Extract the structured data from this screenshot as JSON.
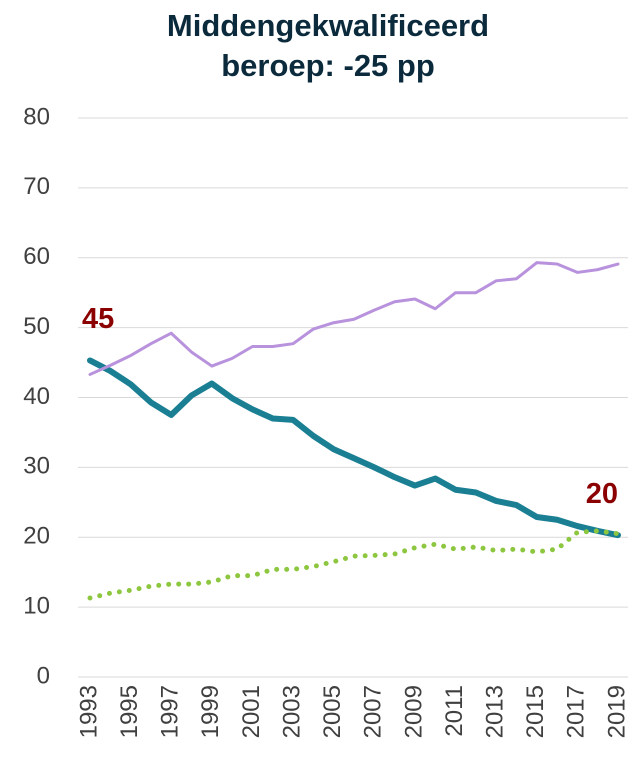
{
  "chart_data": {
    "type": "line",
    "title": "Middengekwalificeerd beroep: -25 pp",
    "x": [
      1993,
      1994,
      1995,
      1996,
      1997,
      1998,
      1999,
      2000,
      2001,
      2002,
      2003,
      2004,
      2005,
      2006,
      2007,
      2008,
      2009,
      2010,
      2011,
      2012,
      2013,
      2014,
      2015,
      2016,
      2017,
      2018,
      2019
    ],
    "series": [
      {
        "color": "#1a7f93",
        "width": 6,
        "dotted": false,
        "values": [
          45.3,
          43.8,
          41.9,
          39.3,
          37.5,
          40.3,
          42.0,
          39.9,
          38.3,
          37.0,
          36.8,
          34.5,
          32.6,
          31.3,
          30.0,
          28.6,
          27.4,
          28.4,
          26.8,
          26.4,
          25.2,
          24.6,
          22.9,
          22.5,
          21.6,
          20.9,
          20.3
        ],
        "value_labels": [
          "45",
          null,
          null,
          null,
          null,
          null,
          null,
          null,
          null,
          null,
          null,
          null,
          null,
          null,
          null,
          null,
          null,
          null,
          null,
          null,
          null,
          null,
          null,
          null,
          null,
          null,
          "20"
        ]
      },
      {
        "color": "#b892dc",
        "width": 3,
        "dotted": false,
        "values": [
          43.3,
          44.6,
          46.0,
          47.7,
          49.2,
          46.5,
          44.5,
          45.6,
          47.3,
          47.3,
          47.7,
          49.8,
          50.7,
          51.2,
          52.5,
          53.7,
          54.1,
          52.7,
          55.0,
          55.0,
          56.7,
          57.0,
          59.3,
          59.1,
          57.9,
          58.3,
          59.1
        ]
      },
      {
        "color": "#8dc63f",
        "width": 5,
        "dotted": true,
        "values": [
          11.3,
          12.0,
          12.4,
          13.0,
          13.3,
          13.3,
          13.6,
          14.5,
          14.5,
          15.4,
          15.4,
          15.8,
          16.5,
          17.3,
          17.4,
          17.6,
          18.5,
          19.0,
          18.3,
          18.6,
          18.1,
          18.3,
          17.9,
          18.3,
          20.7,
          20.9,
          20.5
        ]
      }
    ],
    "value_label_color": "#8b0000",
    "xlim": [
      1993,
      2019
    ],
    "xticks": [
      1993,
      1995,
      1997,
      1999,
      2001,
      2003,
      2005,
      2007,
      2009,
      2011,
      2013,
      2015,
      2017,
      2019
    ],
    "ylim": [
      0,
      80
    ],
    "yticks": [
      0,
      10,
      20,
      30,
      40,
      50,
      60,
      70,
      80
    ],
    "grid": true
  }
}
